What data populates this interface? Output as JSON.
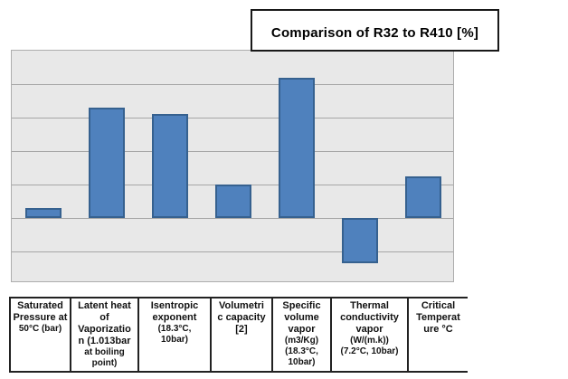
{
  "title_box": {
    "label": "Comparison of R32 to R410 [%]"
  },
  "colors": {
    "bar_fill": "#4f81bd",
    "bar_border": "#36618f",
    "plot_background": "#e8e8e8",
    "gridline": "#a6a6a6",
    "plot_border": "#adadad",
    "title_border": "#191919",
    "table_border": "#222222"
  },
  "chart_data": {
    "type": "bar",
    "title": "Comparison of R32 to R410 [%]",
    "categories": [
      "Saturated Pressure at 50°C (bar)",
      "Latent heat of Vaporization (1.013bar at boiling point)",
      "Isentropic exponent (18.3°C, 10bar)",
      "Volumetric capacity [2]",
      "Specific volume vapor (m3/Kg) (18.3°C, 10bar)",
      "Thermal conductivity vapor (W/(m.k)) (7.2°C, 10bar)",
      "Critical Temperature °C"
    ],
    "values": [
      3,
      33,
      31,
      10,
      42,
      -13.5,
      12.5
    ],
    "xlabel": "",
    "ylabel": "",
    "ylim": [
      -20,
      50
    ],
    "gridline_step": 10,
    "baseline": 0,
    "grid": "horizontal",
    "legend": false,
    "axis_tick_labels_visible": false
  },
  "table": {
    "columns": [
      {
        "lines": [
          {
            "text": "Saturated",
            "small": false
          },
          {
            "text": "Pressure at",
            "small": false
          },
          {
            "text": "50°C (bar)",
            "small": true
          }
        ]
      },
      {
        "lines": [
          {
            "text": "Latent heat",
            "small": false
          },
          {
            "text": "of",
            "small": false
          },
          {
            "text": "Vaporizatio",
            "small": false
          },
          {
            "text": "n (1.013bar",
            "small": false
          },
          {
            "text": "at boiling",
            "small": true
          },
          {
            "text": "point)",
            "small": true
          }
        ]
      },
      {
        "lines": [
          {
            "text": "Isentropic",
            "small": false
          },
          {
            "text": "exponent",
            "small": false
          },
          {
            "text": "(18.3°C,",
            "small": true
          },
          {
            "text": "10bar)",
            "small": true
          }
        ]
      },
      {
        "lines": [
          {
            "text": "Volumetri",
            "small": false
          },
          {
            "text": "c capacity",
            "small": false
          },
          {
            "text": "[2]",
            "small": false
          }
        ]
      },
      {
        "lines": [
          {
            "text": "Specific",
            "small": false
          },
          {
            "text": "volume",
            "small": false
          },
          {
            "text": "vapor",
            "small": false
          },
          {
            "text": "(m3/Kg)",
            "small": true
          },
          {
            "text": "(18.3°C,",
            "small": true
          },
          {
            "text": "10bar)",
            "small": true
          }
        ]
      },
      {
        "lines": [
          {
            "text": "Thermal",
            "small": false
          },
          {
            "text": "conductivity",
            "small": false
          },
          {
            "text": "vapor",
            "small": false
          },
          {
            "text": "(W/(m.k))",
            "small": true
          },
          {
            "text": "(7.2°C, 10bar)",
            "small": true
          }
        ]
      },
      {
        "lines": [
          {
            "text": "Critical",
            "small": false
          },
          {
            "text": "Temperat",
            "small": false
          },
          {
            "text": "ure °C",
            "small": false
          }
        ]
      }
    ]
  }
}
